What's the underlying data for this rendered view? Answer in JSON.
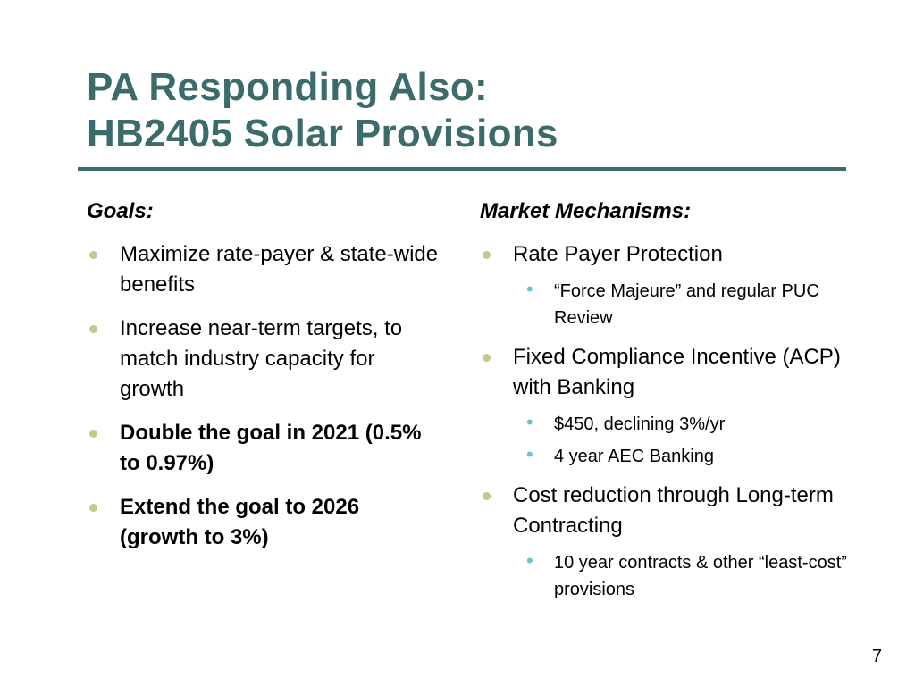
{
  "slide": {
    "title_line1": "PA Responding Also:",
    "title_line2": "HB2405 Solar Provisions",
    "page_number": "7"
  },
  "goals": {
    "heading": "Goals:",
    "items": [
      {
        "text": "Maximize rate-payer & state-wide benefits",
        "bold": false
      },
      {
        "text": "Increase near-term targets, to match industry capacity for growth",
        "bold": false
      },
      {
        "text": "Double the goal in 2021 (0.5% to 0.97%)",
        "bold": true
      },
      {
        "text": "Extend the goal to 2026 (growth to 3%)",
        "bold": true
      }
    ]
  },
  "market": {
    "heading": "Market Mechanisms:",
    "items": [
      {
        "text": "Rate Payer Protection",
        "subitems": [
          "“Force Majeure” and regular PUC Review"
        ]
      },
      {
        "text": "Fixed Compliance Incentive (ACP) with Banking",
        "subitems": [
          "$450, declining 3%/yr",
          "4 year AEC Banking"
        ]
      },
      {
        "text": "Cost reduction through Long-term Contracting",
        "subitems": [
          "10 year contracts & other “least-cost” provisions"
        ]
      }
    ]
  },
  "colors": {
    "title": "#3c6b6b",
    "rule": "#3c6b6b",
    "bullet": "#c6c68e",
    "sub_bullet": "#6cc0c8"
  }
}
